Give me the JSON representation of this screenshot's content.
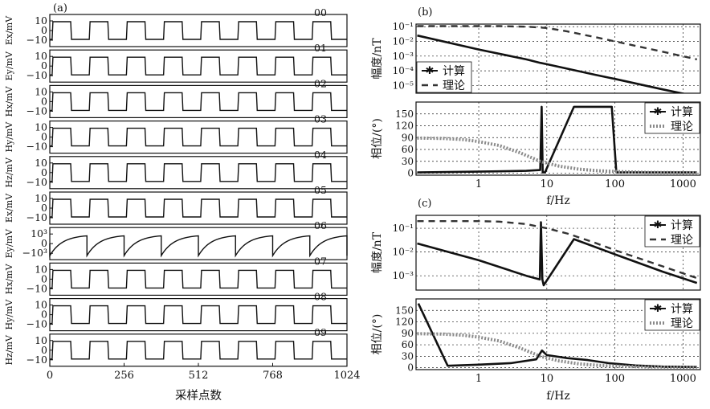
{
  "panel_a": {
    "label": "(a)",
    "xlabel": "采样点数",
    "x_ticks": [
      "0",
      "256",
      "512",
      "768",
      "1024"
    ],
    "channels": [
      {
        "id": "00",
        "ylabel": "Ex/mV",
        "y_ticks": [
          "10",
          "0",
          "−10"
        ],
        "kind": "square",
        "amplitude": 10
      },
      {
        "id": "01",
        "ylabel": "Ey/mV",
        "y_ticks": [
          "10",
          "0",
          "−10"
        ],
        "kind": "square",
        "amplitude": 10
      },
      {
        "id": "02",
        "ylabel": "Hx/mV",
        "y_ticks": [
          "10",
          "0",
          "−10"
        ],
        "kind": "square",
        "amplitude": 10
      },
      {
        "id": "03",
        "ylabel": "Hy/mV",
        "y_ticks": [
          "10",
          "0",
          "−10"
        ],
        "kind": "square",
        "amplitude": 10
      },
      {
        "id": "04",
        "ylabel": "Hz/mV",
        "y_ticks": [
          "10",
          "0",
          "−10"
        ],
        "kind": "square",
        "amplitude": 10
      },
      {
        "id": "05",
        "ylabel": "Ex/mV",
        "y_ticks": [
          "10",
          "0",
          "−10"
        ],
        "kind": "square",
        "amplitude": 10
      },
      {
        "id": "06",
        "ylabel": "Ey/mV",
        "y_ticks": [
          "10³",
          "0",
          "−10³"
        ],
        "kind": "sawtooth",
        "amplitude": 1000
      },
      {
        "id": "07",
        "ylabel": "Hx/mV",
        "y_ticks": [
          "10",
          "0",
          "−10"
        ],
        "kind": "square",
        "amplitude": 10
      },
      {
        "id": "08",
        "ylabel": "Hy/mV",
        "y_ticks": [
          "10",
          "0",
          "−10"
        ],
        "kind": "square",
        "amplitude": 10
      },
      {
        "id": "09",
        "ylabel": "Hz/mV",
        "y_ticks": [
          "10",
          "0",
          "−10"
        ],
        "kind": "square",
        "amplitude": 10
      }
    ]
  },
  "chart_data": [
    {
      "panel": "(b)",
      "type": "line",
      "xlabel": "f/Hz",
      "ylabel": "幅度/nT",
      "x_scale": "log",
      "y_scale": "log",
      "xlim": [
        0.12,
        1800
      ],
      "ylim": [
        3e-06,
        0.15
      ],
      "x_ticks": [
        "1",
        "10",
        "100",
        "1000"
      ],
      "y_ticks": [
        "10⁻¹",
        "10⁻²",
        "10⁻³",
        "10⁻⁴",
        "10⁻⁵"
      ],
      "legend": "bottom-left",
      "series": [
        {
          "name": "计算",
          "x": [
            0.125,
            1,
            5,
            8,
            10,
            50,
            100,
            500,
            1600
          ],
          "y": [
            0.025,
            0.0028,
            0.0006,
            0.00035,
            0.00028,
            5.5e-05,
            2.8e-05,
            5.5e-06,
            1.8e-06
          ]
        },
        {
          "name": "理论",
          "x": [
            0.125,
            0.5,
            1,
            2,
            5,
            10,
            20,
            50,
            100,
            500,
            1600
          ],
          "y": [
            0.11,
            0.11,
            0.11,
            0.11,
            0.1,
            0.082,
            0.048,
            0.02,
            0.01,
            0.002,
            0.0006
          ]
        }
      ]
    },
    {
      "panel": "(b)",
      "type": "line",
      "xlabel": "f/Hz",
      "ylabel": "相位/(°)",
      "x_scale": "log",
      "xlim": [
        0.12,
        1800
      ],
      "ylim": [
        -5,
        180
      ],
      "x_ticks": [
        "1",
        "10",
        "100",
        "1000"
      ],
      "y_ticks": [
        "150",
        "120",
        "90",
        "60",
        "30",
        "0"
      ],
      "legend": "top-right",
      "series": [
        {
          "name": "计算",
          "x": [
            0.125,
            1,
            5,
            8,
            8.4,
            8.7,
            9.4,
            25,
            90,
            105,
            300,
            1600
          ],
          "y": [
            2,
            4,
            6,
            8,
            168,
            2,
            2,
            168,
            168,
            2,
            2,
            2
          ]
        },
        {
          "name": "理论",
          "x": [
            0.125,
            0.3,
            0.6,
            1,
            2,
            4,
            8,
            15,
            30,
            60,
            120,
            300,
            1600
          ],
          "y": [
            89,
            88,
            85,
            80,
            70,
            52,
            30,
            18,
            10,
            6,
            4,
            2,
            1
          ]
        }
      ]
    },
    {
      "panel": "(c)",
      "type": "line",
      "xlabel": "f/Hz",
      "ylabel": "幅度/nT",
      "x_scale": "log",
      "y_scale": "log",
      "xlim": [
        0.12,
        1800
      ],
      "ylim": [
        0.00025,
        0.35
      ],
      "x_ticks": [
        "1",
        "10",
        "100",
        "1000"
      ],
      "y_ticks": [
        "10⁻¹",
        "10⁻²",
        "10⁻³"
      ],
      "legend": "top-right",
      "series": [
        {
          "name": "计算",
          "x": [
            0.125,
            1,
            5,
            7.9,
            8.2,
            8.6,
            9,
            25,
            100,
            500,
            1600
          ],
          "y": [
            0.023,
            0.0045,
            0.001,
            0.0007,
            0.18,
            0.0007,
            0.0004,
            0.035,
            0.008,
            0.0015,
            0.0005
          ]
        },
        {
          "name": "理论",
          "x": [
            0.125,
            0.5,
            1,
            2,
            5,
            10,
            20,
            50,
            100,
            500,
            1600
          ],
          "y": [
            0.2,
            0.2,
            0.2,
            0.19,
            0.15,
            0.1,
            0.06,
            0.025,
            0.012,
            0.0025,
            0.0008
          ]
        }
      ]
    },
    {
      "panel": "(c)",
      "type": "line",
      "xlabel": "f/Hz",
      "ylabel": "相位/(°)",
      "x_scale": "log",
      "xlim": [
        0.12,
        1800
      ],
      "ylim": [
        -5,
        180
      ],
      "x_ticks": [
        "1",
        "10",
        "100",
        "1000"
      ],
      "y_ticks": [
        "150",
        "120",
        "90",
        "60",
        "30",
        "0"
      ],
      "legend": "top-right",
      "series": [
        {
          "name": "计算",
          "x": [
            0.13,
            0.35,
            1,
            3,
            7,
            8.5,
            10,
            20,
            40,
            80,
            200,
            500,
            1600
          ],
          "y": [
            168,
            5,
            8,
            12,
            22,
            45,
            33,
            25,
            20,
            12,
            6,
            3,
            2
          ]
        },
        {
          "name": "理论",
          "x": [
            0.125,
            0.3,
            0.6,
            1,
            2,
            4,
            8,
            15,
            30,
            60,
            120,
            300,
            1600
          ],
          "y": [
            89,
            88,
            85,
            80,
            70,
            52,
            30,
            18,
            10,
            6,
            4,
            2,
            1
          ]
        }
      ]
    }
  ],
  "panel_labels": {
    "b": "(b)",
    "c": "(c)"
  },
  "legend_labels": {
    "calc": "计算",
    "theory": "理论"
  },
  "xlabel_spectrum": "f/Hz"
}
